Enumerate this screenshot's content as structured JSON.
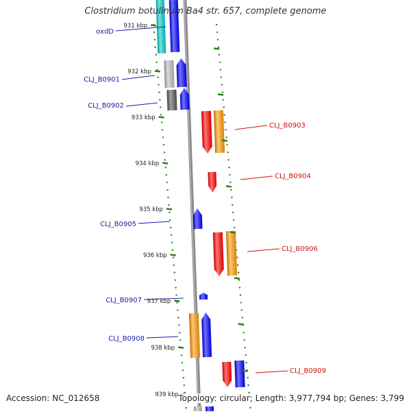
{
  "header": {
    "title": "Clostridium botulinum Ba4 str. 657, complete genome"
  },
  "footer": {
    "accession": "Accession: NC_012658",
    "topology": "Topology: circular; Length: 3,977,794 bp; Genes: 3,799"
  },
  "colors": {
    "backbone": "#8c8c8c",
    "tick": "#2e7d1f",
    "forward_gene": "#0000ff",
    "reverse_gene": "#ff0000",
    "orange_feature": "#ff9900",
    "cyan_feature": "#00cccc",
    "gray_feature": "#bbbbbb",
    "darkgray_feature": "#555555",
    "forward_label": "#1a1aa6",
    "reverse_label": "#cc1111"
  },
  "kbp_ticks": [
    "931 kbp",
    "932 kbp",
    "933 kbp",
    "934 kbp",
    "935 kbp",
    "936 kbp",
    "937 kbp",
    "938 kbp",
    "939 kbp"
  ],
  "gene_labels": [
    {
      "text": "oxdD",
      "strand": "forward"
    },
    {
      "text": "CLJ_B0901",
      "strand": "forward"
    },
    {
      "text": "CLJ_B0902",
      "strand": "forward"
    },
    {
      "text": "CLJ_B0903",
      "strand": "reverse"
    },
    {
      "text": "CLJ_B0904",
      "strand": "reverse"
    },
    {
      "text": "CLJ_B0905",
      "strand": "forward"
    },
    {
      "text": "CLJ_B0906",
      "strand": "reverse"
    },
    {
      "text": "CLJ_B0907",
      "strand": "forward"
    },
    {
      "text": "CLJ_B0908",
      "strand": "forward"
    },
    {
      "text": "CLJ_B0909",
      "strand": "reverse"
    }
  ]
}
